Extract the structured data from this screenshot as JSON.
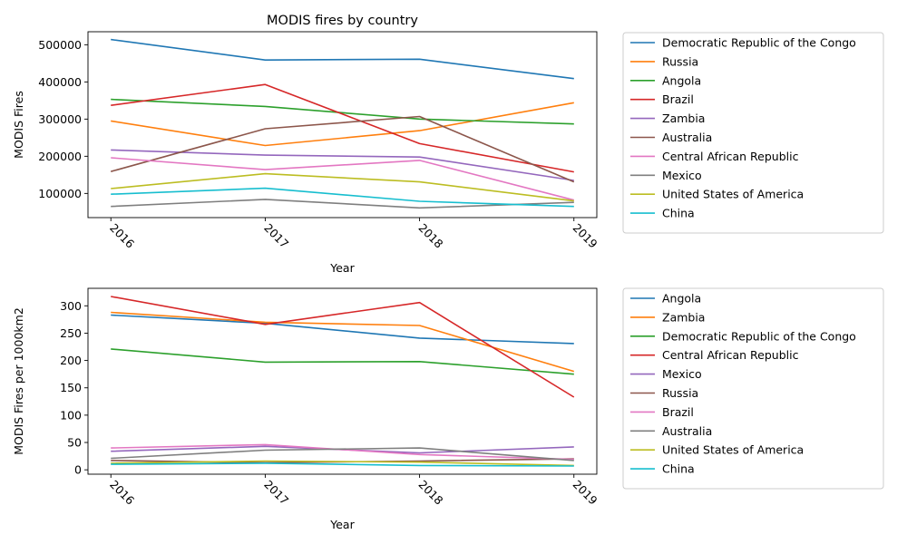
{
  "chart_data": [
    {
      "type": "line",
      "title": "MODIS fires by country",
      "xlabel": "Year",
      "ylabel": "MODIS Fires",
      "x": [
        "2016",
        "2017",
        "2018",
        "2019"
      ],
      "ylim": [
        35000,
        535000
      ],
      "yticks": [
        100000,
        200000,
        300000,
        400000,
        500000
      ],
      "legend_position": "outside right",
      "series": [
        {
          "name": "Democratic Republic of the Congo",
          "color": "#1f77b4",
          "values": [
            514000,
            459000,
            461000,
            409000
          ]
        },
        {
          "name": "Russia",
          "color": "#ff7f0e",
          "values": [
            295000,
            229000,
            269000,
            344000
          ]
        },
        {
          "name": "Angola",
          "color": "#2ca02c",
          "values": [
            353000,
            334000,
            300000,
            287000
          ]
        },
        {
          "name": "Brazil",
          "color": "#d62728",
          "values": [
            337000,
            393000,
            234000,
            158000
          ]
        },
        {
          "name": "Zambia",
          "color": "#9467bd",
          "values": [
            217000,
            203000,
            198000,
            135000
          ]
        },
        {
          "name": "Australia",
          "color": "#8c564b",
          "values": [
            159000,
            274000,
            307000,
            131000
          ]
        },
        {
          "name": "Central African Republic",
          "color": "#e377c2",
          "values": [
            196000,
            164000,
            189000,
            82000
          ]
        },
        {
          "name": "Mexico",
          "color": "#7f7f7f",
          "values": [
            65000,
            84000,
            61000,
            76000
          ]
        },
        {
          "name": "United States of America",
          "color": "#bcbd22",
          "values": [
            113000,
            153000,
            131000,
            80000
          ]
        },
        {
          "name": "China",
          "color": "#17becf",
          "values": [
            98000,
            114000,
            79000,
            65000
          ]
        }
      ]
    },
    {
      "type": "line",
      "title": "",
      "xlabel": "Year",
      "ylabel": "MODIS Fires per 1000km2",
      "x": [
        "2016",
        "2017",
        "2018",
        "2019"
      ],
      "ylim": [
        -8,
        332
      ],
      "yticks": [
        0,
        50,
        100,
        150,
        200,
        250,
        300
      ],
      "legend_position": "outside right",
      "series": [
        {
          "name": "Angola",
          "color": "#1f77b4",
          "values": [
            283,
            268,
            241,
            231
          ]
        },
        {
          "name": "Zambia",
          "color": "#ff7f0e",
          "values": [
            288,
            270,
            264,
            180
          ]
        },
        {
          "name": "Democratic Republic of the Congo",
          "color": "#2ca02c",
          "values": [
            221,
            197,
            198,
            175
          ]
        },
        {
          "name": "Central African Republic",
          "color": "#d62728",
          "values": [
            317,
            266,
            306,
            133
          ]
        },
        {
          "name": "Mexico",
          "color": "#9467bd",
          "values": [
            34,
            43,
            31,
            42
          ]
        },
        {
          "name": "Russia",
          "color": "#8c564b",
          "values": [
            17,
            13,
            16,
            20
          ]
        },
        {
          "name": "Brazil",
          "color": "#e377c2",
          "values": [
            40,
            46,
            28,
            19
          ]
        },
        {
          "name": "Australia",
          "color": "#7f7f7f",
          "values": [
            21,
            36,
            40,
            17
          ]
        },
        {
          "name": "United States of America",
          "color": "#bcbd22",
          "values": [
            12,
            16,
            14,
            8
          ]
        },
        {
          "name": "China",
          "color": "#17becf",
          "values": [
            10,
            12,
            8,
            7
          ]
        }
      ]
    }
  ]
}
